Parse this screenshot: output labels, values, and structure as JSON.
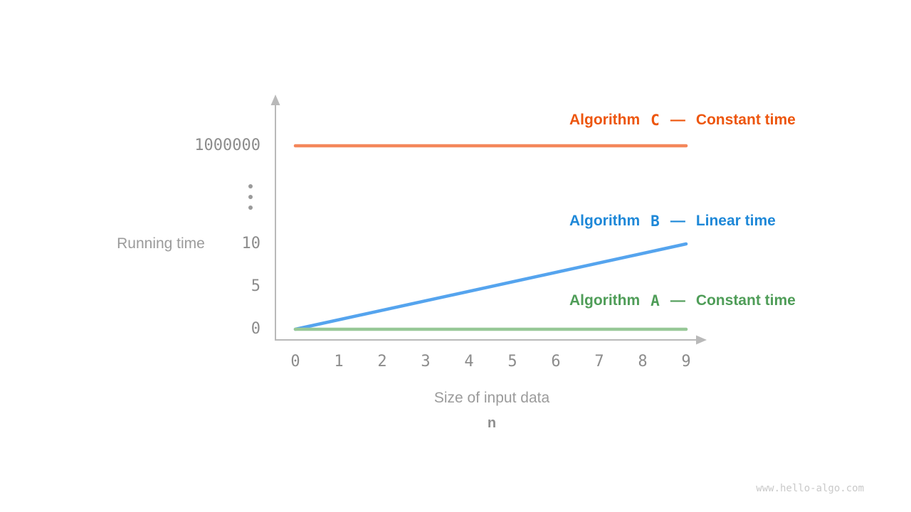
{
  "footer": {
    "watermark": "www.hello-algo.com"
  },
  "colors": {
    "axis": "#b9b9b9",
    "tick_text": "#8c8c8c",
    "axis_title_text": "#9b9b9b"
  },
  "chart_data": {
    "type": "line",
    "title": "",
    "xlabel": "Size of input data",
    "xlabel_symbol": "n",
    "ylabel": "Running time",
    "x_axis": {
      "ticks": [
        0,
        1,
        2,
        3,
        4,
        5,
        6,
        7,
        8,
        9
      ],
      "range": [
        0,
        9
      ]
    },
    "y_axis": {
      "ticks": [
        {
          "label": "0",
          "value": 0
        },
        {
          "label": "5",
          "value": 5
        },
        {
          "label": "10",
          "value": 10
        },
        {
          "label": "1000000",
          "value": 1000000
        }
      ],
      "broken_axis": true,
      "break_marker": "vertical-ellipsis"
    },
    "grid": false,
    "legend_position": "right-of-lines",
    "series": [
      {
        "name": "Algorithm",
        "letter": "C",
        "separator": "—",
        "description": "Constant time",
        "text_color": "#ed560e",
        "line_color": "#f4875b",
        "points": [
          [
            0,
            1000000
          ],
          [
            9,
            1000000
          ]
        ]
      },
      {
        "name": "Algorithm",
        "letter": "B",
        "separator": "—",
        "description": "Linear time",
        "text_color": "#1e88d8",
        "line_color": "#55a4ee",
        "points": [
          [
            0,
            0
          ],
          [
            9,
            10
          ]
        ]
      },
      {
        "name": "Algorithm",
        "letter": "A",
        "separator": "—",
        "description": "Constant time",
        "text_color": "#4f9d58",
        "line_color": "#97c897",
        "points": [
          [
            0,
            0
          ],
          [
            9,
            0
          ]
        ]
      }
    ]
  }
}
